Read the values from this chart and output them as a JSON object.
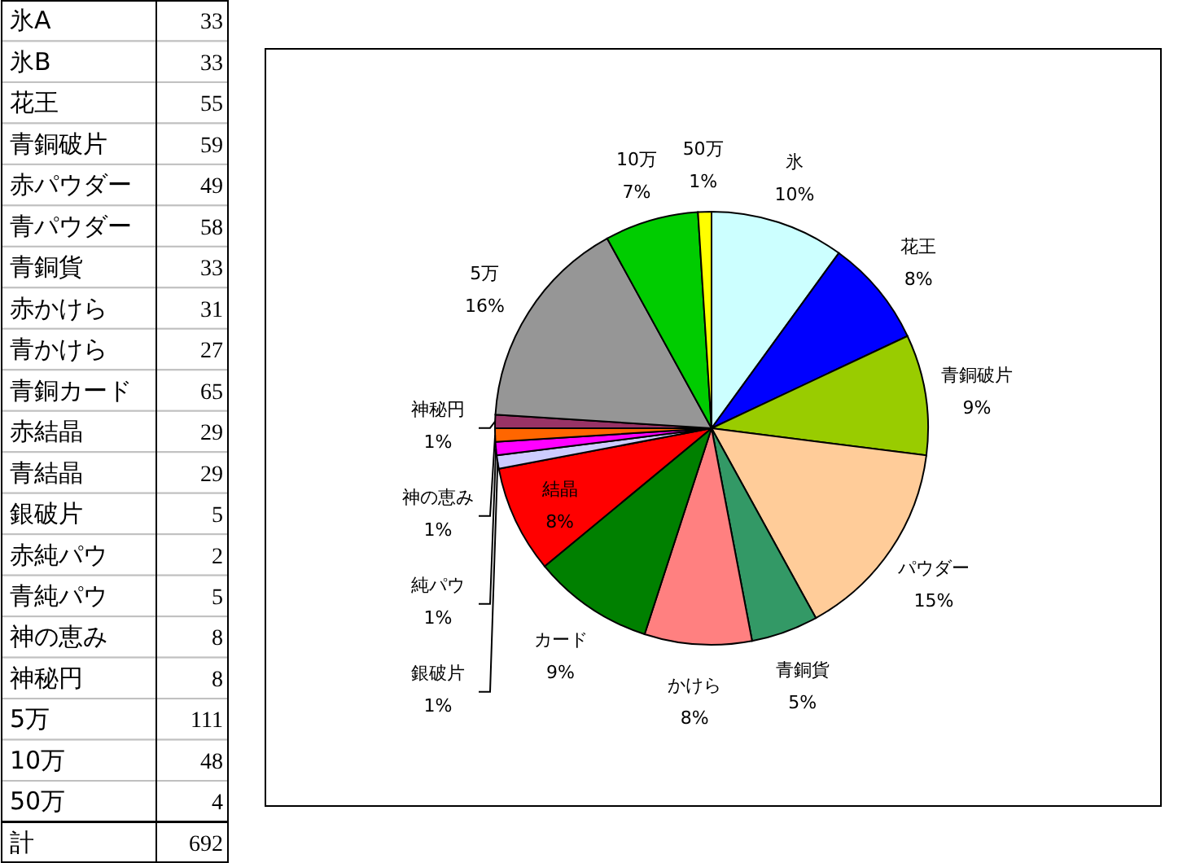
{
  "chart_data": [
    {
      "type": "other",
      "categories": [
        "氷A",
        "氷B",
        "花王",
        "青銅破片",
        "赤パウダー",
        "青パウダー",
        "青銅貨",
        "赤かけら",
        "青かけら",
        "青銅カード",
        "赤結晶",
        "青結晶",
        "銀破片",
        "赤純パウ",
        "青純パウ",
        "神の恵み",
        "神秘円",
        "5万",
        "10万",
        "50万",
        "計"
      ],
      "values": [
        33,
        33,
        55,
        59,
        49,
        58,
        33,
        31,
        27,
        65,
        29,
        29,
        5,
        2,
        5,
        8,
        8,
        111,
        48,
        4,
        692
      ],
      "data_labels": true
    },
    {
      "type": "pie",
      "categories": [
        "氷",
        "花王",
        "青銅破片",
        "パウダー",
        "青銅貨",
        "かけら",
        "カード",
        "結晶",
        "銀破片",
        "純パウ",
        "神の恵み",
        "神秘円",
        "5万",
        "10万",
        "50万"
      ],
      "values": [
        10,
        8,
        9,
        15,
        5,
        8,
        9,
        8,
        1,
        1,
        1,
        1,
        16,
        7,
        1
      ],
      "colors": [
        "#ccffff",
        "#0000ff",
        "#99cc00",
        "#ffcc99",
        "#339966",
        "#ff8080",
        "#008000",
        "#ff0000",
        "#ccccff",
        "#ff00ff",
        "#ff6600",
        "#993366",
        "#969696",
        "#00cc00",
        "#ffff00"
      ],
      "value_labels": [
        "10%",
        "8%",
        "9%",
        "15%",
        "5%",
        "8%",
        "9%",
        "8%",
        "1%",
        "1%",
        "1%",
        "1%",
        "16%",
        "7%",
        "1%"
      ]
    }
  ]
}
